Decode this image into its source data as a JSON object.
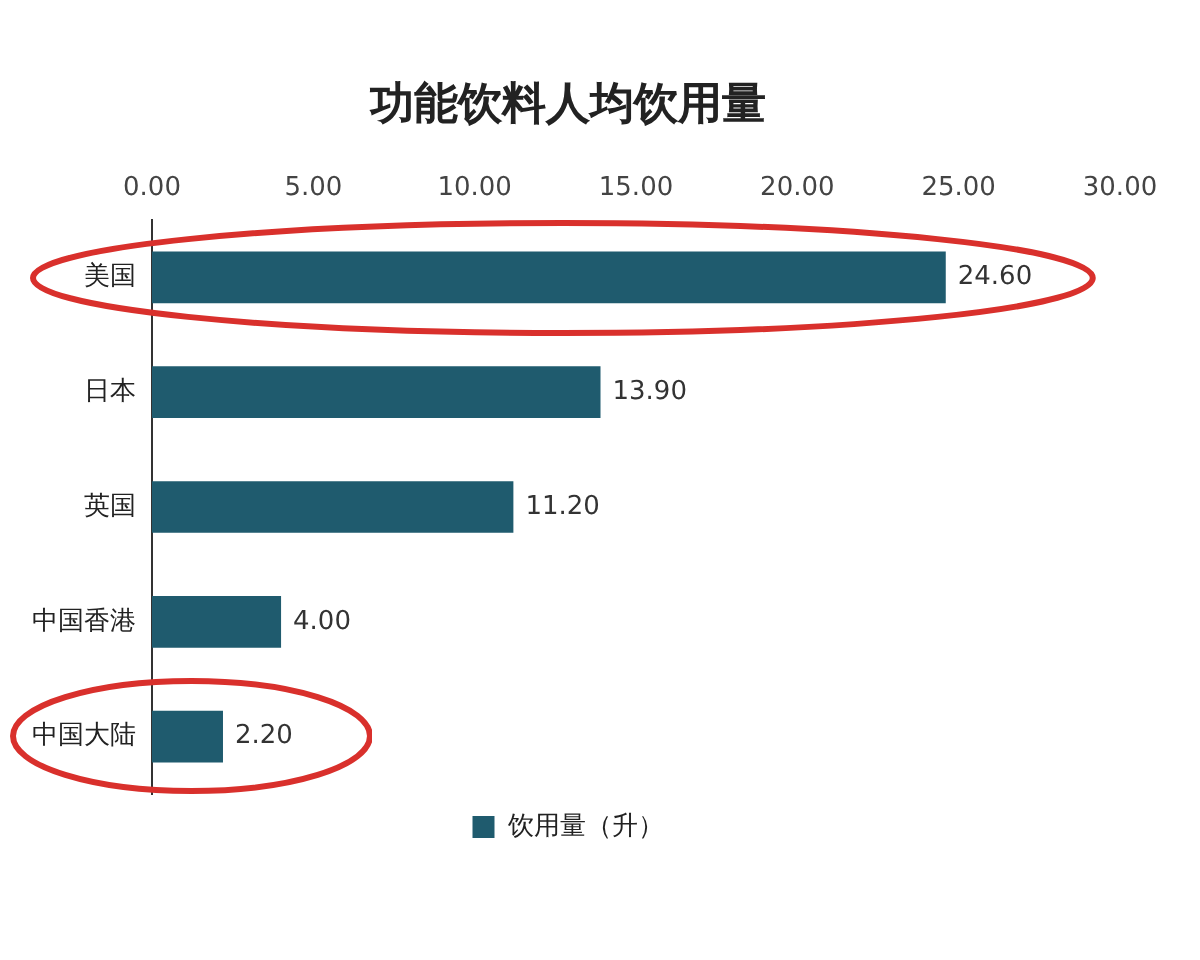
{
  "chart_data": {
    "type": "bar",
    "orientation": "horizontal",
    "title": "功能饮料人均饮用量",
    "categories": [
      "美国",
      "日本",
      "英国",
      "中国香港",
      "中国大陆"
    ],
    "series": [
      {
        "name": "饮用量（升）",
        "color": "#1f5b6e",
        "values": [
          24.6,
          13.9,
          11.2,
          4.0,
          2.2
        ],
        "value_labels": [
          "24.60",
          "13.90",
          "11.20",
          "4.00",
          "2.20"
        ]
      }
    ],
    "xlim": [
      0,
      30
    ],
    "xticks": [
      {
        "value": 0,
        "label": "0.00"
      },
      {
        "value": 5,
        "label": "5.00"
      },
      {
        "value": 10,
        "label": "10.00"
      },
      {
        "value": 15,
        "label": "15.00"
      },
      {
        "value": 20,
        "label": "20.00"
      },
      {
        "value": 25,
        "label": "25.00"
      },
      {
        "value": 30,
        "label": "30.00"
      }
    ],
    "grid": false,
    "legend": "bottom"
  }
}
